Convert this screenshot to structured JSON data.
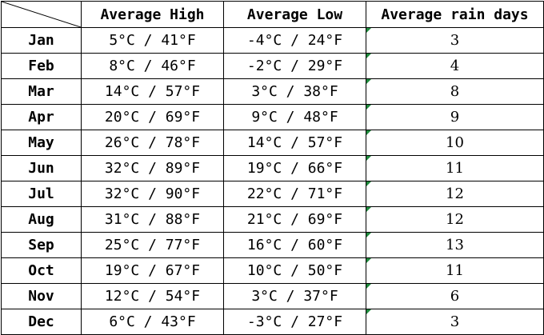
{
  "table": {
    "headers": [
      "",
      "Average High",
      "Average Low",
      "Average rain days"
    ],
    "rows": [
      {
        "month": "Jan",
        "high": "5°C / 41°F",
        "low": "-4°C / 24°F",
        "rain": "3"
      },
      {
        "month": "Feb",
        "high": "8°C / 46°F",
        "low": "-2°C / 29°F",
        "rain": "4"
      },
      {
        "month": "Mar",
        "high": "14°C / 57°F",
        "low": "3°C / 38°F",
        "rain": "8"
      },
      {
        "month": "Apr",
        "high": "20°C / 69°F",
        "low": "9°C / 48°F",
        "rain": "9"
      },
      {
        "month": "May",
        "high": "26°C / 78°F",
        "low": "14°C / 57°F",
        "rain": "10"
      },
      {
        "month": "Jun",
        "high": "32°C / 89°F",
        "low": "19°C / 66°F",
        "rain": "11"
      },
      {
        "month": "Jul",
        "high": "32°C / 90°F",
        "low": "22°C / 71°F",
        "rain": "12"
      },
      {
        "month": "Aug",
        "high": "31°C / 88°F",
        "low": "21°C / 69°F",
        "rain": "12"
      },
      {
        "month": "Sep",
        "high": "25°C / 77°F",
        "low": "16°C / 60°F",
        "rain": "13"
      },
      {
        "month": "Oct",
        "high": "19°C / 67°F",
        "low": "10°C / 50°F",
        "rain": "11"
      },
      {
        "month": "Nov",
        "high": "12°C / 54°F",
        "low": "3°C / 37°F",
        "rain": "6"
      },
      {
        "month": "Dec",
        "high": "6°C / 43°F",
        "low": "-3°C / 27°F",
        "rain": "3"
      }
    ]
  },
  "colors": {
    "grid_line": "#000000",
    "comment_marker": "#1e8a3c"
  },
  "icons": {
    "corner_cell": "diagonal-line-icon",
    "cell_marker": "comment-flag-icon"
  }
}
